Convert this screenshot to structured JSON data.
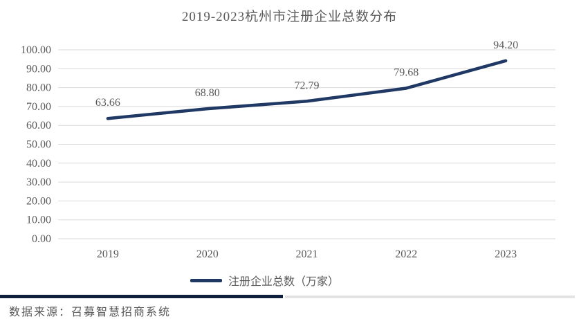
{
  "title": "2019-2023杭州市注册企业总数分布",
  "legend": {
    "label": "注册企业总数（万家）"
  },
  "source_note": "数据来源：召募智慧招商系统",
  "colors": {
    "line": "#1F3864",
    "grid": "#D9D9D9",
    "text": "#595959",
    "divider_dark": "#10203F",
    "divider_light": "#E4E4E4",
    "background": "#FFFFFF"
  },
  "chart_data": {
    "type": "line",
    "title": "2019-2023杭州市注册企业总数分布",
    "categories": [
      "2019",
      "2020",
      "2021",
      "2022",
      "2023"
    ],
    "series": [
      {
        "name": "注册企业总数（万家）",
        "values": [
          63.66,
          68.8,
          72.79,
          79.68,
          94.2
        ]
      }
    ],
    "data_labels": [
      "63.66",
      "68.80",
      "72.79",
      "79.68",
      "94.20"
    ],
    "xlabel": "",
    "ylabel": "",
    "ylim": [
      0,
      100
    ],
    "ytick_step": 10,
    "ytick_labels": [
      "0.00",
      "10.00",
      "20.00",
      "30.00",
      "40.00",
      "50.00",
      "60.00",
      "70.00",
      "80.00",
      "90.00",
      "100.00"
    ],
    "grid": true,
    "legend_position": "bottom"
  }
}
